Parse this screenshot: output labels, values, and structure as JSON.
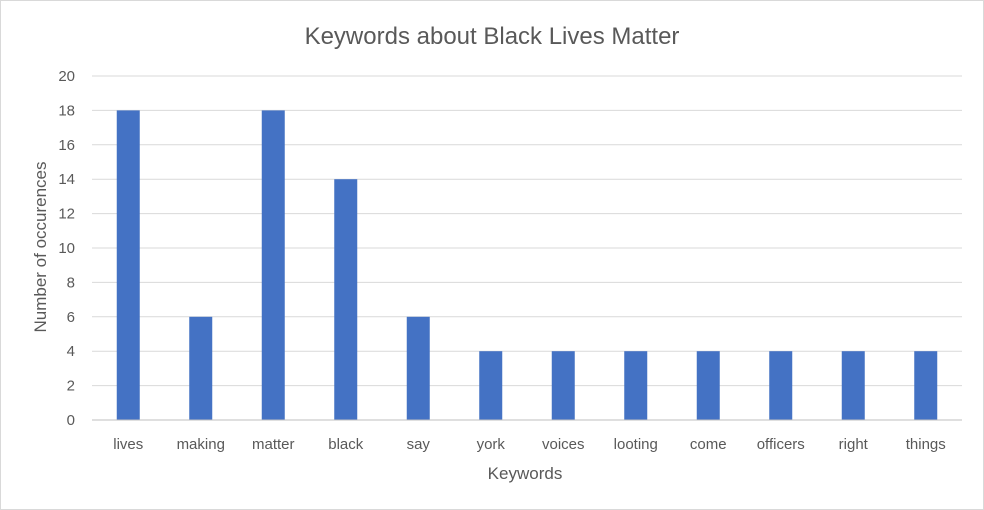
{
  "chart_data": {
    "type": "bar",
    "title": "Keywords about Black Lives Matter",
    "xlabel": "Keywords",
    "ylabel": "Number of occurences",
    "categories": [
      "lives",
      "making",
      "matter",
      "black",
      "say",
      "york",
      "voices",
      "looting",
      "come",
      "officers",
      "right",
      "things"
    ],
    "values": [
      18,
      6,
      18,
      14,
      6,
      4,
      4,
      4,
      4,
      4,
      4,
      4
    ],
    "ylim": [
      0,
      20
    ],
    "yticks": [
      "0",
      "2",
      "4",
      "6",
      "8",
      "10",
      "12",
      "14",
      "16",
      "18",
      "20"
    ],
    "grid": true,
    "legend": "none",
    "bar_color": "#4472c4"
  }
}
